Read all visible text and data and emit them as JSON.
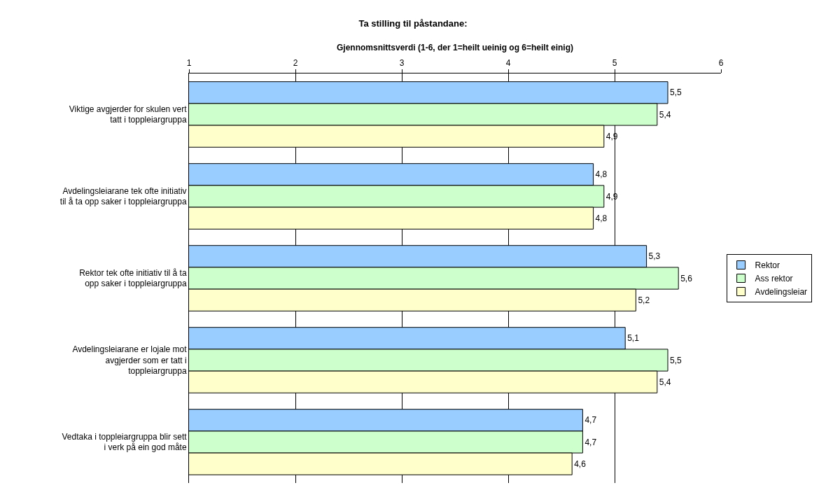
{
  "chart_data": {
    "type": "bar",
    "orientation": "horizontal",
    "title": "Ta stilling til påstandane:",
    "xlabel": "Gjennomsnittsverdi (1-6, der 1=heilt ueinig og 6=heilt einig)",
    "categories": [
      "Viktige avgjerder for skulen vert tatt i toppleiargruppa",
      "Avdelingsleiarane tek ofte initiativ til å ta opp saker i toppleiargruppa",
      "Rektor tek ofte initiativ til å ta opp saker i toppleiargruppa",
      "Avdelingsleiarane er lojale mot avgjerder som er tatt i toppleiargruppa",
      "Vedtaka i toppleiargruppa blir sett i verk på ein god måte"
    ],
    "series": [
      {
        "name": "Rektor",
        "color": "#99ccff",
        "values": [
          5.5,
          4.8,
          5.3,
          5.1,
          4.7
        ],
        "value_labels": [
          "5,5",
          "4,8",
          "5,3",
          "5,1",
          "4,7"
        ]
      },
      {
        "name": "Ass rektor",
        "color": "#ccffcc",
        "values": [
          5.4,
          4.9,
          5.6,
          5.5,
          4.7
        ],
        "value_labels": [
          "5,4",
          "4,9",
          "5,6",
          "5,5",
          "4,7"
        ]
      },
      {
        "name": "Avdelingsleiar",
        "color": "#ffffcc",
        "values": [
          4.9,
          4.8,
          5.2,
          5.4,
          4.6
        ],
        "value_labels": [
          "4,9",
          "4,8",
          "5,2",
          "5,4",
          "4,6"
        ]
      }
    ],
    "xlim": [
      1,
      6
    ],
    "xticks": [
      1,
      2,
      3,
      4,
      5,
      6
    ],
    "grid": "x",
    "legend": "right"
  }
}
